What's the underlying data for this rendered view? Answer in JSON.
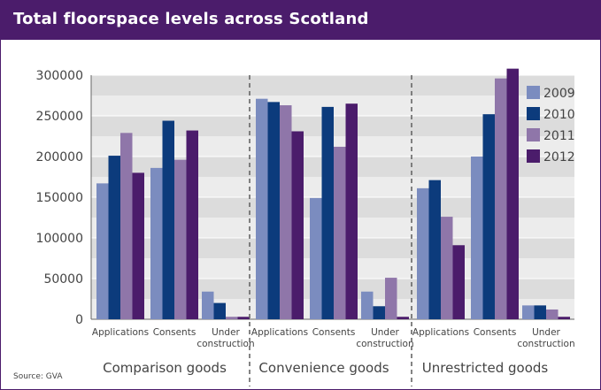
{
  "chart_data": {
    "type": "bar",
    "title": "Total floorspace levels across Scotland",
    "source": "Source: GVA",
    "ylim": [
      0,
      300000
    ],
    "y_ticks": [
      0,
      50000,
      100000,
      150000,
      200000,
      250000,
      300000
    ],
    "grid": true,
    "legend_position": "right",
    "series_names": [
      "2009",
      "2010",
      "2011",
      "2012"
    ],
    "colors": [
      "#7b8cbf",
      "#0c3b7c",
      "#8f76a9",
      "#4b1c6b"
    ],
    "groups": [
      {
        "name": "Comparison goods",
        "categories": [
          {
            "label": [
              "Applications"
            ],
            "values": [
              167000,
              201000,
              229000,
              180000
            ]
          },
          {
            "label": [
              "Consents"
            ],
            "values": [
              186000,
              244000,
              196000,
              232000
            ]
          },
          {
            "label": [
              "Under",
              "construction"
            ],
            "values": [
              34000,
              20000,
              3000,
              3000
            ]
          }
        ]
      },
      {
        "name": "Convenience goods",
        "categories": [
          {
            "label": [
              "Applications"
            ],
            "values": [
              271000,
              267000,
              263000,
              231000
            ]
          },
          {
            "label": [
              "Consents"
            ],
            "values": [
              149000,
              261000,
              212000,
              265000
            ]
          },
          {
            "label": [
              "Under",
              "construction"
            ],
            "values": [
              34000,
              16000,
              51000,
              3000
            ]
          }
        ]
      },
      {
        "name": "Unrestricted goods",
        "categories": [
          {
            "label": [
              "Applications"
            ],
            "values": [
              161000,
              171000,
              126000,
              91000
            ]
          },
          {
            "label": [
              "Consents"
            ],
            "values": [
              200000,
              252000,
              296000,
              308000
            ]
          },
          {
            "label": [
              "Under",
              "construction"
            ],
            "values": [
              17000,
              17000,
              12000,
              3000
            ]
          }
        ]
      }
    ]
  }
}
